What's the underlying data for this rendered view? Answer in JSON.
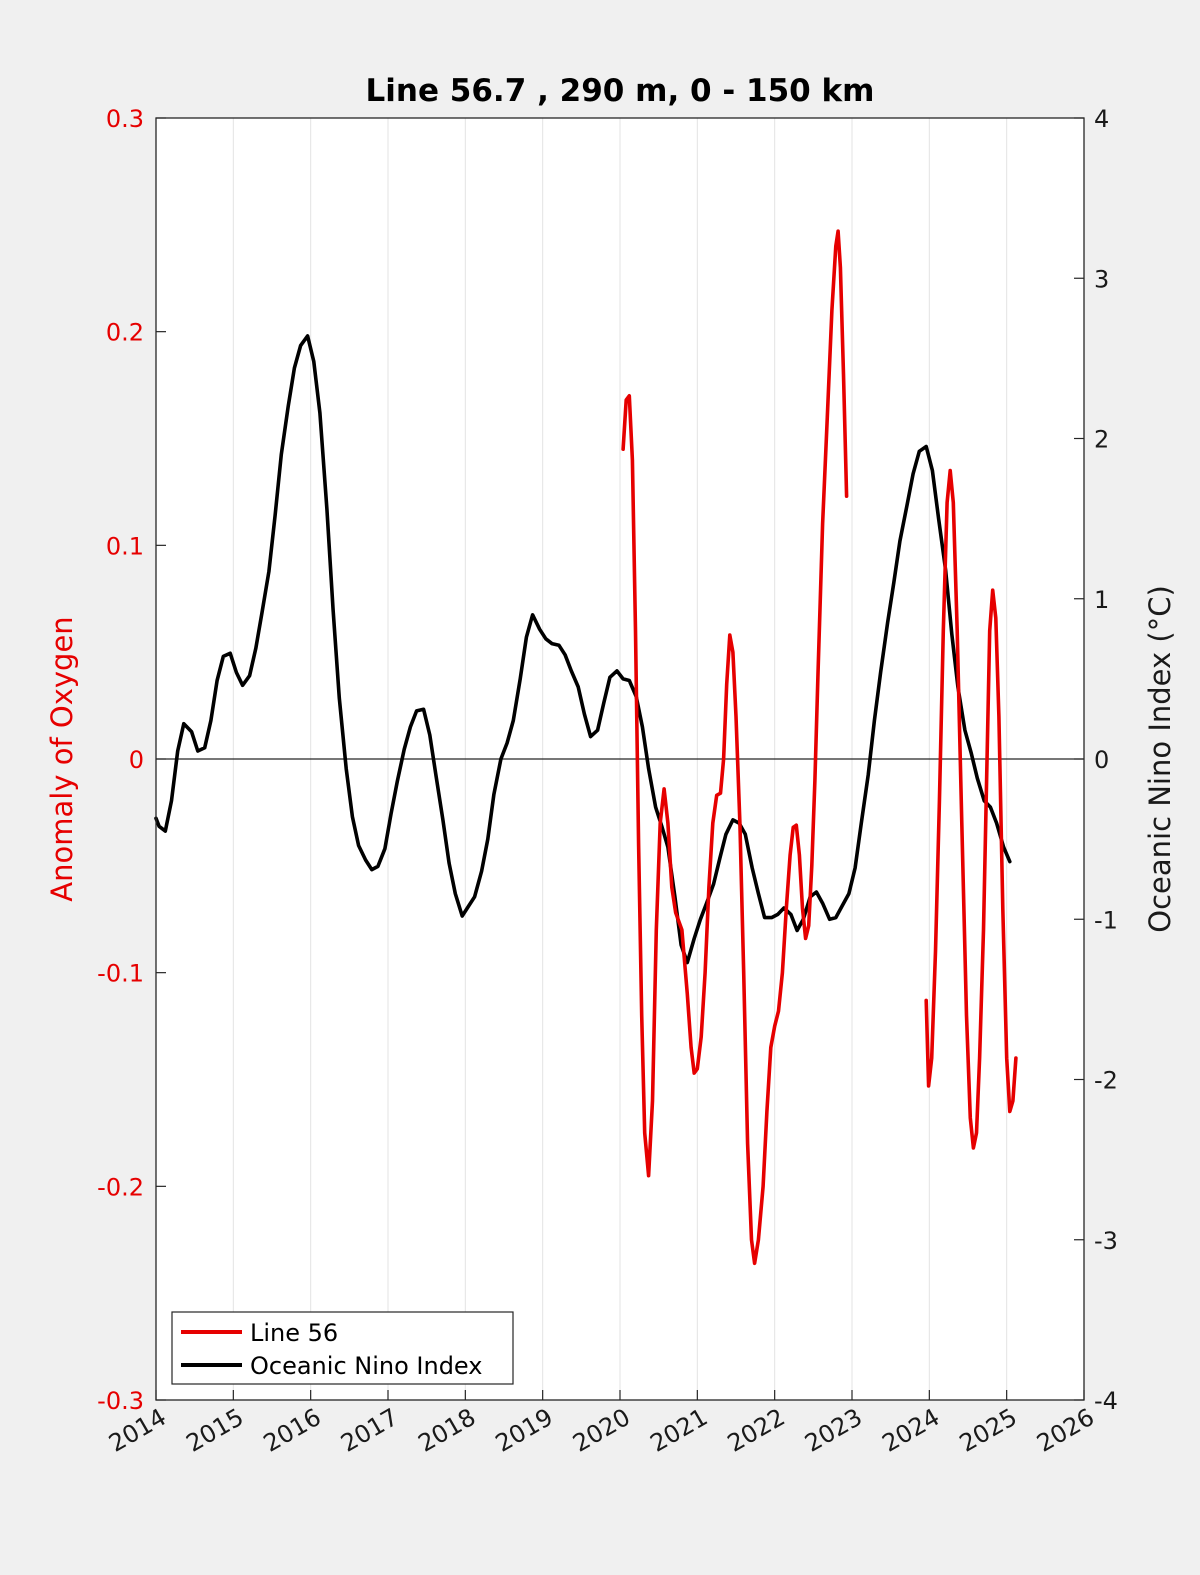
{
  "chart_data": {
    "type": "line",
    "title": "Line 56.7 , 290 m, 0 - 150 km",
    "ylabel_left": "Anomaly of Oxygen",
    "ylabel_right": "Oceanic Nino Index (°C)",
    "xlabel": "",
    "xlim": [
      2014,
      2026
    ],
    "ylim_left": [
      -0.3,
      0.3
    ],
    "ylim_right": [
      -4,
      4
    ],
    "x_ticks": [
      "2014",
      "2015",
      "2016",
      "2017",
      "2018",
      "2019",
      "2020",
      "2021",
      "2022",
      "2023",
      "2024",
      "2025",
      "2026"
    ],
    "y_left_ticks": [
      "0.3",
      "0.2",
      "0.1",
      "0",
      "-0.1",
      "-0.2",
      "-0.3"
    ],
    "y_right_ticks": [
      "4",
      "3",
      "2",
      "1",
      "0",
      "-1",
      "-2",
      "-3",
      "-4"
    ],
    "grid": "vertical",
    "zero_line": true,
    "legend_position": "bottom-left",
    "series": [
      {
        "name": "Line 56",
        "axis": "left",
        "color": "#e60000",
        "segments": [
          [
            [
              2020.04,
              0.145
            ],
            [
              2020.08,
              0.168
            ],
            [
              2020.12,
              0.17
            ],
            [
              2020.16,
              0.14
            ],
            [
              2020.2,
              0.06
            ],
            [
              2020.24,
              -0.04
            ],
            [
              2020.28,
              -0.12
            ],
            [
              2020.32,
              -0.175
            ],
            [
              2020.37,
              -0.195
            ],
            [
              2020.42,
              -0.16
            ],
            [
              2020.47,
              -0.08
            ],
            [
              2020.52,
              -0.03
            ],
            [
              2020.57,
              -0.014
            ],
            [
              2020.62,
              -0.03
            ],
            [
              2020.67,
              -0.06
            ],
            [
              2020.72,
              -0.072
            ],
            [
              2020.8,
              -0.08
            ],
            [
              2020.87,
              -0.11
            ],
            [
              2020.92,
              -0.135
            ],
            [
              2020.96,
              -0.147
            ],
            [
              2021.0,
              -0.145
            ],
            [
              2021.05,
              -0.13
            ],
            [
              2021.1,
              -0.1
            ],
            [
              2021.15,
              -0.06
            ],
            [
              2021.2,
              -0.03
            ],
            [
              2021.25,
              -0.017
            ],
            [
              2021.3,
              -0.016
            ],
            [
              2021.34,
              0.0
            ],
            [
              2021.38,
              0.035
            ],
            [
              2021.42,
              0.058
            ],
            [
              2021.46,
              0.05
            ],
            [
              2021.5,
              0.02
            ],
            [
              2021.55,
              -0.03
            ],
            [
              2021.6,
              -0.1
            ],
            [
              2021.65,
              -0.18
            ],
            [
              2021.7,
              -0.225
            ],
            [
              2021.74,
              -0.236
            ],
            [
              2021.79,
              -0.225
            ],
            [
              2021.85,
              -0.2
            ],
            [
              2021.9,
              -0.165
            ],
            [
              2021.95,
              -0.135
            ],
            [
              2022.0,
              -0.125
            ],
            [
              2022.05,
              -0.118
            ],
            [
              2022.1,
              -0.1
            ],
            [
              2022.15,
              -0.07
            ],
            [
              2022.2,
              -0.045
            ],
            [
              2022.24,
              -0.032
            ],
            [
              2022.28,
              -0.031
            ],
            [
              2022.32,
              -0.045
            ],
            [
              2022.36,
              -0.07
            ],
            [
              2022.4,
              -0.084
            ],
            [
              2022.44,
              -0.078
            ],
            [
              2022.48,
              -0.05
            ],
            [
              2022.52,
              -0.01
            ],
            [
              2022.56,
              0.04
            ],
            [
              2022.62,
              0.11
            ],
            [
              2022.68,
              0.16
            ],
            [
              2022.74,
              0.21
            ],
            [
              2022.79,
              0.24
            ],
            [
              2022.82,
              0.247
            ],
            [
              2022.85,
              0.23
            ],
            [
              2022.89,
              0.18
            ],
            [
              2022.93,
              0.123
            ]
          ],
          [
            [
              2023.96,
              -0.113
            ],
            [
              2023.99,
              -0.153
            ],
            [
              2024.03,
              -0.14
            ],
            [
              2024.08,
              -0.09
            ],
            [
              2024.13,
              -0.02
            ],
            [
              2024.18,
              0.06
            ],
            [
              2024.23,
              0.12
            ],
            [
              2024.27,
              0.135
            ],
            [
              2024.31,
              0.12
            ],
            [
              2024.36,
              0.06
            ],
            [
              2024.42,
              -0.03
            ],
            [
              2024.48,
              -0.12
            ],
            [
              2024.53,
              -0.168
            ],
            [
              2024.57,
              -0.182
            ],
            [
              2024.61,
              -0.175
            ],
            [
              2024.65,
              -0.14
            ],
            [
              2024.7,
              -0.08
            ],
            [
              2024.74,
              -0.01
            ],
            [
              2024.78,
              0.06
            ],
            [
              2024.82,
              0.079
            ],
            [
              2024.86,
              0.066
            ],
            [
              2024.9,
              0.02
            ],
            [
              2024.95,
              -0.07
            ],
            [
              2025.0,
              -0.14
            ],
            [
              2025.04,
              -0.165
            ],
            [
              2025.08,
              -0.16
            ],
            [
              2025.12,
              -0.14
            ]
          ]
        ]
      },
      {
        "name": "Oceanic Nino Index",
        "axis": "right",
        "color": "#000000",
        "points": [
          [
            2014.0,
            -0.37
          ],
          [
            2014.04,
            -0.42
          ],
          [
            2014.12,
            -0.45
          ],
          [
            2014.2,
            -0.26
          ],
          [
            2014.28,
            0.05
          ],
          [
            2014.36,
            0.22
          ],
          [
            2014.46,
            0.17
          ],
          [
            2014.54,
            0.05
          ],
          [
            2014.63,
            0.07
          ],
          [
            2014.71,
            0.24
          ],
          [
            2014.79,
            0.49
          ],
          [
            2014.87,
            0.64
          ],
          [
            2014.96,
            0.66
          ],
          [
            2015.04,
            0.54
          ],
          [
            2015.12,
            0.46
          ],
          [
            2015.21,
            0.52
          ],
          [
            2015.29,
            0.69
          ],
          [
            2015.37,
            0.91
          ],
          [
            2015.46,
            1.17
          ],
          [
            2015.54,
            1.52
          ],
          [
            2015.62,
            1.9
          ],
          [
            2015.71,
            2.2
          ],
          [
            2015.79,
            2.44
          ],
          [
            2015.87,
            2.58
          ],
          [
            2015.96,
            2.64
          ],
          [
            2016.04,
            2.48
          ],
          [
            2016.12,
            2.16
          ],
          [
            2016.21,
            1.56
          ],
          [
            2016.29,
            0.93
          ],
          [
            2016.37,
            0.38
          ],
          [
            2016.46,
            -0.06
          ],
          [
            2016.54,
            -0.36
          ],
          [
            2016.62,
            -0.54
          ],
          [
            2016.71,
            -0.63
          ],
          [
            2016.79,
            -0.69
          ],
          [
            2016.87,
            -0.67
          ],
          [
            2016.96,
            -0.56
          ],
          [
            2017.04,
            -0.34
          ],
          [
            2017.12,
            -0.14
          ],
          [
            2017.21,
            0.06
          ],
          [
            2017.29,
            0.2
          ],
          [
            2017.37,
            0.3
          ],
          [
            2017.46,
            0.31
          ],
          [
            2017.54,
            0.15
          ],
          [
            2017.62,
            -0.1
          ],
          [
            2017.71,
            -0.38
          ],
          [
            2017.79,
            -0.65
          ],
          [
            2017.87,
            -0.84
          ],
          [
            2017.96,
            -0.98
          ],
          [
            2018.04,
            -0.92
          ],
          [
            2018.12,
            -0.86
          ],
          [
            2018.21,
            -0.7
          ],
          [
            2018.29,
            -0.5
          ],
          [
            2018.37,
            -0.22
          ],
          [
            2018.46,
            0.0
          ],
          [
            2018.54,
            0.1
          ],
          [
            2018.62,
            0.24
          ],
          [
            2018.71,
            0.5
          ],
          [
            2018.79,
            0.76
          ],
          [
            2018.87,
            0.9
          ],
          [
            2018.96,
            0.81
          ],
          [
            2019.04,
            0.75
          ],
          [
            2019.12,
            0.72
          ],
          [
            2019.21,
            0.71
          ],
          [
            2019.29,
            0.65
          ],
          [
            2019.37,
            0.55
          ],
          [
            2019.46,
            0.45
          ],
          [
            2019.54,
            0.28
          ],
          [
            2019.62,
            0.14
          ],
          [
            2019.71,
            0.18
          ],
          [
            2019.79,
            0.35
          ],
          [
            2019.87,
            0.51
          ],
          [
            2019.96,
            0.55
          ],
          [
            2020.04,
            0.5
          ],
          [
            2020.12,
            0.49
          ],
          [
            2020.21,
            0.39
          ],
          [
            2020.29,
            0.2
          ],
          [
            2020.37,
            -0.06
          ],
          [
            2020.46,
            -0.3
          ],
          [
            2020.54,
            -0.42
          ],
          [
            2020.62,
            -0.55
          ],
          [
            2020.71,
            -0.86
          ],
          [
            2020.79,
            -1.16
          ],
          [
            2020.87,
            -1.27
          ],
          [
            2020.96,
            -1.12
          ],
          [
            2021.04,
            -1.0
          ],
          [
            2021.12,
            -0.9
          ],
          [
            2021.21,
            -0.78
          ],
          [
            2021.29,
            -0.62
          ],
          [
            2021.37,
            -0.47
          ],
          [
            2021.46,
            -0.38
          ],
          [
            2021.54,
            -0.4
          ],
          [
            2021.62,
            -0.47
          ],
          [
            2021.71,
            -0.68
          ],
          [
            2021.79,
            -0.84
          ],
          [
            2021.87,
            -0.99
          ],
          [
            2021.96,
            -0.99
          ],
          [
            2022.04,
            -0.97
          ],
          [
            2022.12,
            -0.93
          ],
          [
            2022.21,
            -0.97
          ],
          [
            2022.29,
            -1.07
          ],
          [
            2022.37,
            -1.0
          ],
          [
            2022.46,
            -0.86
          ],
          [
            2022.54,
            -0.83
          ],
          [
            2022.62,
            -0.9
          ],
          [
            2022.71,
            -1.0
          ],
          [
            2022.79,
            -0.99
          ],
          [
            2022.87,
            -0.92
          ],
          [
            2022.96,
            -0.84
          ],
          [
            2023.04,
            -0.68
          ],
          [
            2023.12,
            -0.4
          ],
          [
            2023.21,
            -0.1
          ],
          [
            2023.29,
            0.24
          ],
          [
            2023.37,
            0.54
          ],
          [
            2023.46,
            0.85
          ],
          [
            2023.54,
            1.1
          ],
          [
            2023.62,
            1.36
          ],
          [
            2023.71,
            1.58
          ],
          [
            2023.79,
            1.78
          ],
          [
            2023.87,
            1.92
          ],
          [
            2023.96,
            1.95
          ],
          [
            2024.04,
            1.8
          ],
          [
            2024.12,
            1.5
          ],
          [
            2024.21,
            1.18
          ],
          [
            2024.29,
            0.78
          ],
          [
            2024.37,
            0.45
          ],
          [
            2024.46,
            0.18
          ],
          [
            2024.54,
            0.04
          ],
          [
            2024.62,
            -0.12
          ],
          [
            2024.71,
            -0.26
          ],
          [
            2024.79,
            -0.3
          ],
          [
            2024.87,
            -0.4
          ],
          [
            2024.96,
            -0.55
          ],
          [
            2025.04,
            -0.64
          ]
        ]
      }
    ]
  }
}
